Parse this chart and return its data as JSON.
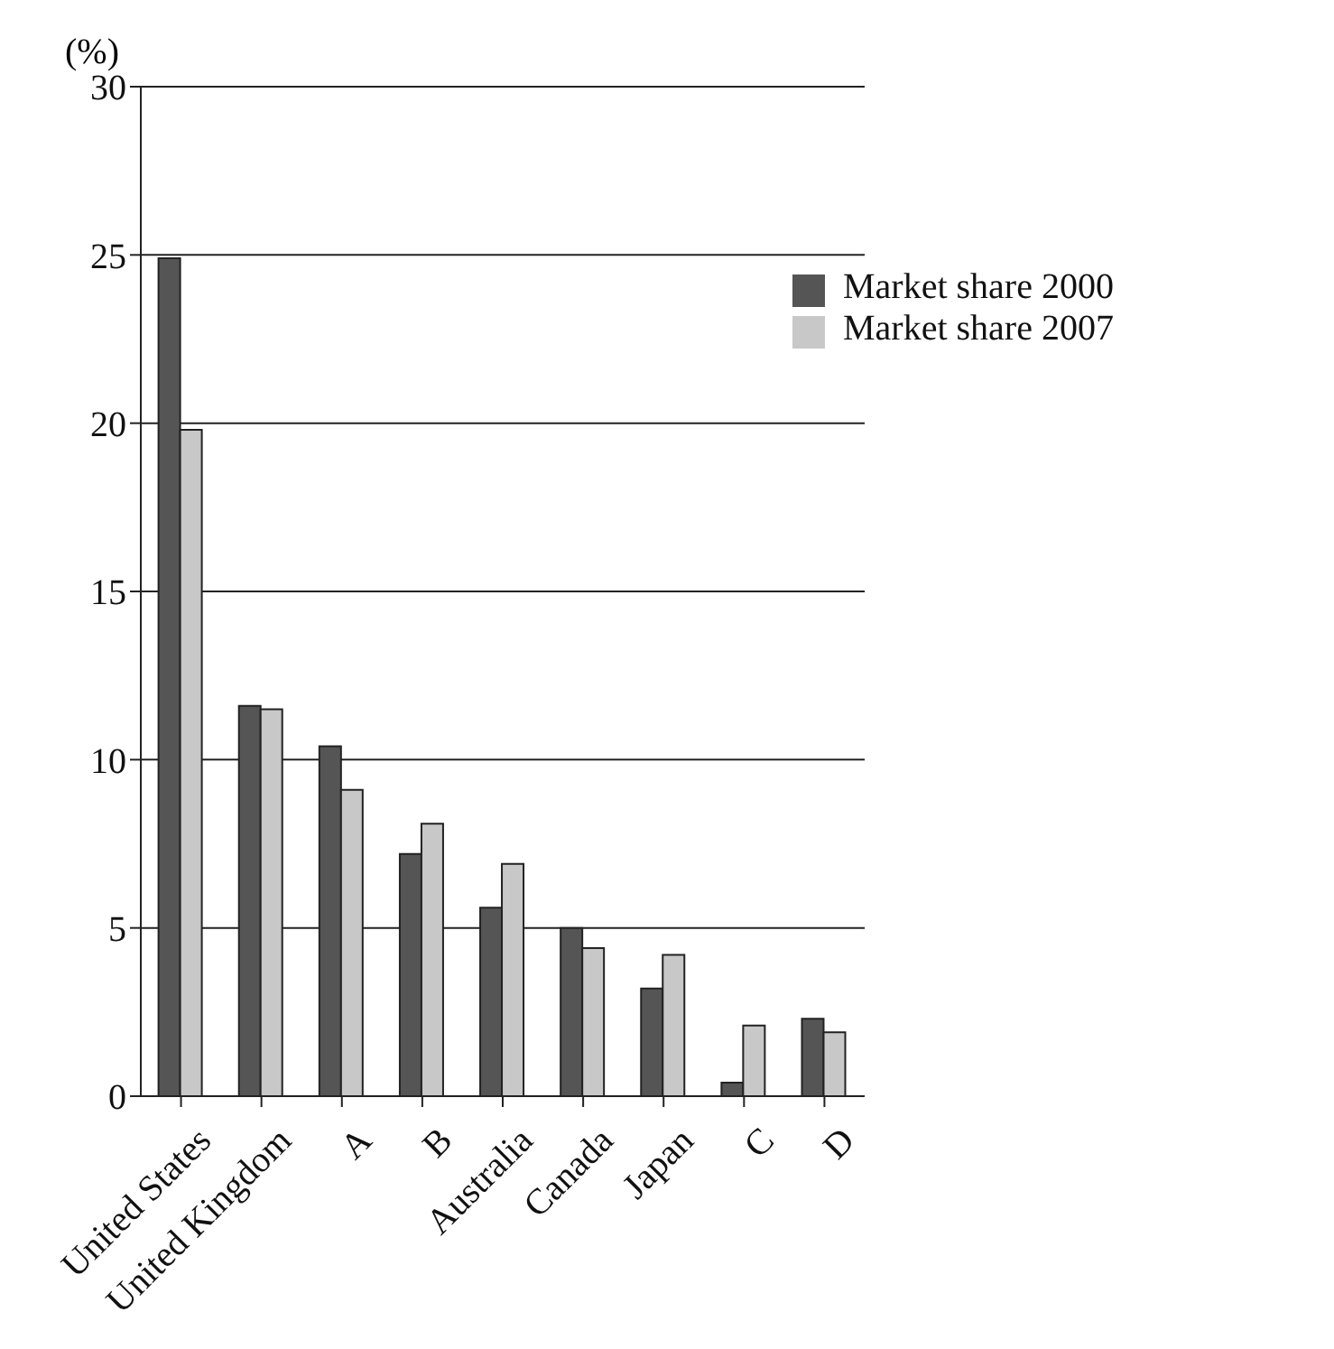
{
  "chart_data": {
    "type": "bar",
    "ylabel": "(%)",
    "categories": [
      "United States",
      "United Kingdom",
      "A",
      "B",
      "Australia",
      "Canada",
      "Japan",
      "C",
      "D"
    ],
    "series": [
      {
        "name": "Market share 2000",
        "color": "#555555",
        "values": [
          24.9,
          11.6,
          10.4,
          7.2,
          5.6,
          5.0,
          3.2,
          0.4,
          2.3
        ]
      },
      {
        "name": "Market share 2007",
        "color": "#c8c8c8",
        "values": [
          19.8,
          11.5,
          9.1,
          8.1,
          6.9,
          4.4,
          4.2,
          2.1,
          1.9
        ]
      }
    ],
    "ylim": [
      0,
      30
    ],
    "yticks": [
      0,
      5,
      10,
      15,
      20,
      25,
      30
    ],
    "grid": "y",
    "legend": "top right"
  }
}
